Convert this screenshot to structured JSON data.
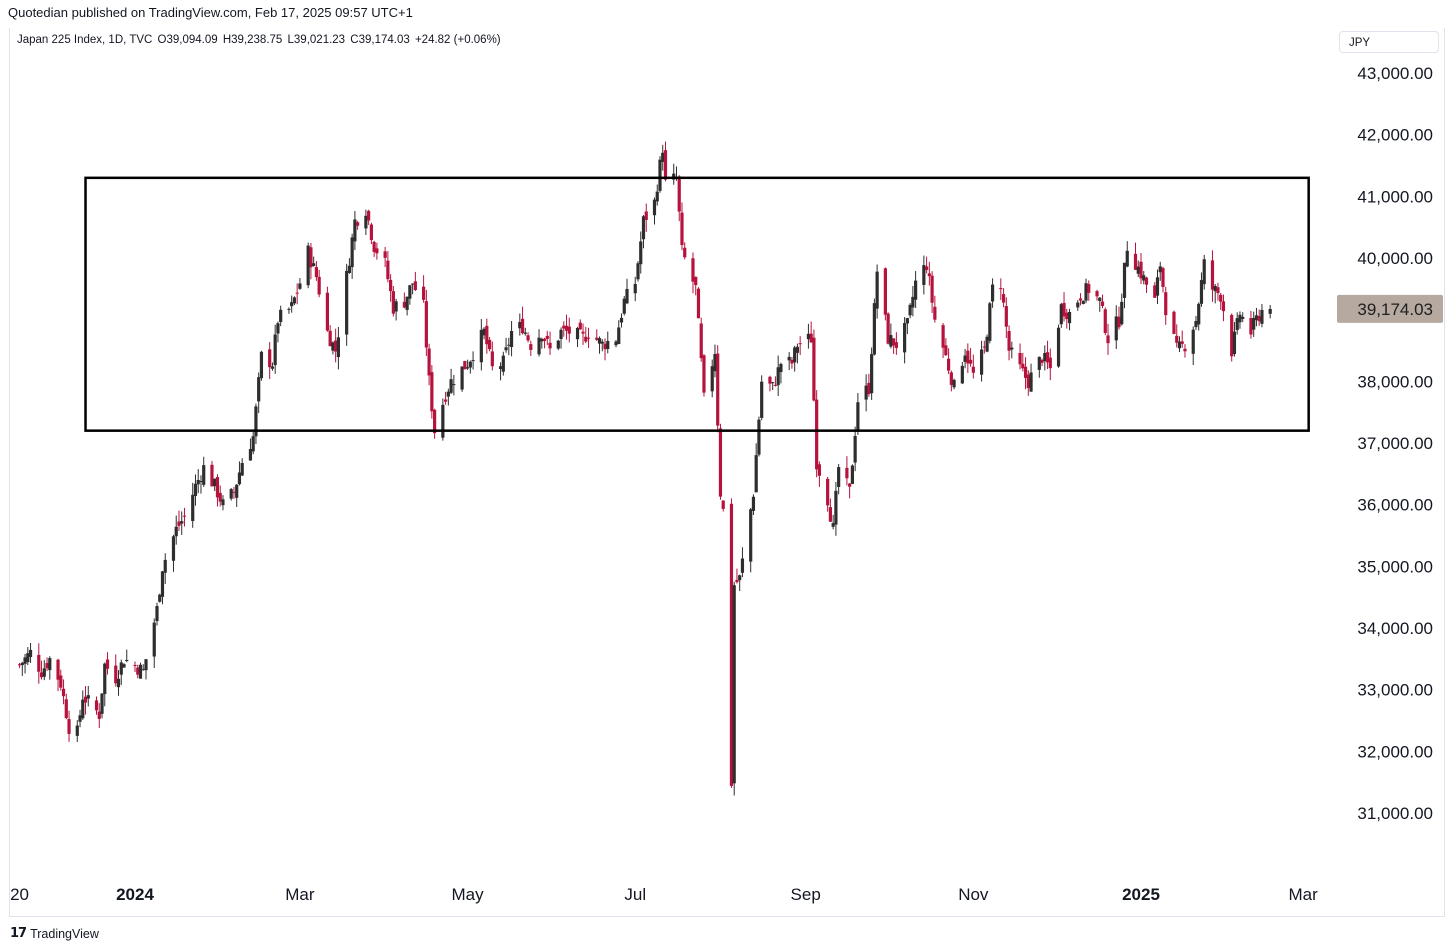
{
  "header": {
    "published": "Quotedian published on TradingView.com, Feb 17, 2025 09:57 UTC+1"
  },
  "legend": {
    "symbol": "Japan 225 Index, 1D, TVC",
    "open": "O39,094.09",
    "high": "H39,238.75",
    "low": "L39,021.23",
    "close": "C39,174.03",
    "change": "+24.82 (+0.06%)"
  },
  "currency_button": "JPY",
  "footer": {
    "brand": "TradingView",
    "logo_icon": "tradingview-logo-icon"
  },
  "colors": {
    "up": "#2e2e2e",
    "down": "#b5123c",
    "box": "#000000",
    "price_label_bg": "#b5a9a0"
  },
  "chart_data": {
    "type": "candlestick",
    "title": "Japan 225 Index, 1D, TVC",
    "ylabel": "",
    "ylim": [
      30300,
      43500
    ],
    "y_ticks": [
      "43,000.00",
      "42,000.00",
      "41,000.00",
      "40,000.00",
      "38,000.00",
      "37,000.00",
      "36,000.00",
      "35,000.00",
      "34,000.00",
      "33,000.00",
      "32,000.00",
      "31,000.00"
    ],
    "x_ticks": [
      {
        "label": "20",
        "date": "2023-11-20",
        "bold": false
      },
      {
        "label": "2024",
        "date": "2024-01-01",
        "bold": true
      },
      {
        "label": "Mar",
        "date": "2024-03-01",
        "bold": false
      },
      {
        "label": "May",
        "date": "2024-05-01",
        "bold": false
      },
      {
        "label": "Jul",
        "date": "2024-07-01",
        "bold": false
      },
      {
        "label": "Sep",
        "date": "2024-09-01",
        "bold": false
      },
      {
        "label": "Nov",
        "date": "2024-11-01",
        "bold": false
      },
      {
        "label": "2025",
        "date": "2025-01-01",
        "bold": true
      },
      {
        "label": "Mar",
        "date": "2025-03-01",
        "bold": false
      }
    ],
    "last_price": {
      "value": 39174.03,
      "label": "39,174.03"
    },
    "range_box": {
      "x_start": "2023-12-14",
      "x_end": "2025-03-03",
      "y_low": 37200,
      "y_high": 41300
    },
    "series_points": [
      [
        "2023-11-20",
        33400
      ],
      [
        "2023-11-24",
        33600
      ],
      [
        "2023-11-28",
        33300
      ],
      [
        "2023-12-01",
        33500
      ],
      [
        "2023-12-05",
        33100
      ],
      [
        "2023-12-08",
        32400
      ],
      [
        "2023-12-11",
        32300
      ],
      [
        "2023-12-13",
        32900
      ],
      [
        "2023-12-15",
        32800
      ],
      [
        "2023-12-19",
        32600
      ],
      [
        "2023-12-21",
        33400
      ],
      [
        "2023-12-25",
        33200
      ],
      [
        "2023-12-28",
        33500
      ],
      [
        "2024-01-04",
        33300
      ],
      [
        "2024-01-09",
        34300
      ],
      [
        "2024-01-11",
        35000
      ],
      [
        "2024-01-16",
        35600
      ],
      [
        "2024-01-19",
        35800
      ],
      [
        "2024-01-23",
        36300
      ],
      [
        "2024-01-26",
        36600
      ],
      [
        "2024-01-30",
        36300
      ],
      [
        "2024-02-02",
        36000
      ],
      [
        "2024-02-06",
        36200
      ],
      [
        "2024-02-09",
        36700
      ],
      [
        "2024-02-13",
        37100
      ],
      [
        "2024-02-16",
        38400
      ],
      [
        "2024-02-20",
        38300
      ],
      [
        "2024-02-22",
        39000
      ],
      [
        "2024-02-27",
        39200
      ],
      [
        "2024-03-01",
        39600
      ],
      [
        "2024-03-04",
        40100
      ],
      [
        "2024-03-07",
        39700
      ],
      [
        "2024-03-11",
        38800
      ],
      [
        "2024-03-14",
        38500
      ],
      [
        "2024-03-18",
        39700
      ],
      [
        "2024-03-21",
        40600
      ],
      [
        "2024-03-25",
        40800
      ],
      [
        "2024-03-28",
        40200
      ],
      [
        "2024-04-01",
        39900
      ],
      [
        "2024-04-04",
        39200
      ],
      [
        "2024-04-08",
        39300
      ],
      [
        "2024-04-11",
        39600
      ],
      [
        "2024-04-15",
        39200
      ],
      [
        "2024-04-17",
        38000
      ],
      [
        "2024-04-19",
        37200
      ],
      [
        "2024-04-23",
        37800
      ],
      [
        "2024-04-25",
        38000
      ],
      [
        "2024-05-01",
        38300
      ],
      [
        "2024-05-07",
        38800
      ],
      [
        "2024-05-10",
        38200
      ],
      [
        "2024-05-14",
        38300
      ],
      [
        "2024-05-17",
        38800
      ],
      [
        "2024-05-21",
        38900
      ],
      [
        "2024-05-24",
        38600
      ],
      [
        "2024-05-28",
        38800
      ],
      [
        "2024-05-31",
        38500
      ],
      [
        "2024-06-04",
        38800
      ],
      [
        "2024-06-07",
        38800
      ],
      [
        "2024-06-12",
        38700
      ],
      [
        "2024-06-14",
        38800
      ],
      [
        "2024-06-19",
        38600
      ],
      [
        "2024-06-24",
        38700
      ],
      [
        "2024-06-27",
        39300
      ],
      [
        "2024-07-01",
        39600
      ],
      [
        "2024-07-04",
        40600
      ],
      [
        "2024-07-08",
        40900
      ],
      [
        "2024-07-11",
        41800
      ],
      [
        "2024-07-12",
        41200
      ],
      [
        "2024-07-16",
        41300
      ],
      [
        "2024-07-18",
        40100
      ],
      [
        "2024-07-23",
        39500
      ],
      [
        "2024-07-26",
        37700
      ],
      [
        "2024-07-30",
        38500
      ],
      [
        "2024-08-01",
        36200
      ],
      [
        "2024-08-02",
        35900
      ],
      [
        "2024-08-05",
        31500
      ],
      [
        "2024-08-06",
        34700
      ],
      [
        "2024-08-08",
        34800
      ],
      [
        "2024-08-13",
        36200
      ],
      [
        "2024-08-16",
        38000
      ],
      [
        "2024-08-20",
        37900
      ],
      [
        "2024-08-23",
        38300
      ],
      [
        "2024-08-27",
        38300
      ],
      [
        "2024-08-29",
        38600
      ],
      [
        "2024-09-03",
        38700
      ],
      [
        "2024-09-05",
        36700
      ],
      [
        "2024-09-09",
        36100
      ],
      [
        "2024-09-11",
        35600
      ],
      [
        "2024-09-13",
        36600
      ],
      [
        "2024-09-17",
        36200
      ],
      [
        "2024-09-20",
        37700
      ],
      [
        "2024-09-24",
        37900
      ],
      [
        "2024-09-27",
        39800
      ],
      [
        "2024-10-01",
        38700
      ],
      [
        "2024-10-04",
        38600
      ],
      [
        "2024-10-08",
        38900
      ],
      [
        "2024-10-11",
        39600
      ],
      [
        "2024-10-15",
        39900
      ],
      [
        "2024-10-18",
        39000
      ],
      [
        "2024-10-22",
        38400
      ],
      [
        "2024-10-25",
        37900
      ],
      [
        "2024-10-29",
        38500
      ],
      [
        "2024-11-01",
        38100
      ],
      [
        "2024-11-05",
        38500
      ],
      [
        "2024-11-08",
        39500
      ],
      [
        "2024-11-11",
        39600
      ],
      [
        "2024-11-14",
        38500
      ],
      [
        "2024-11-18",
        38200
      ],
      [
        "2024-11-21",
        38000
      ],
      [
        "2024-11-26",
        38400
      ],
      [
        "2024-11-29",
        38200
      ],
      [
        "2024-12-03",
        39200
      ],
      [
        "2024-12-06",
        39100
      ],
      [
        "2024-12-10",
        39400
      ],
      [
        "2024-12-13",
        39500
      ],
      [
        "2024-12-17",
        39300
      ],
      [
        "2024-12-20",
        38700
      ],
      [
        "2024-12-24",
        39000
      ],
      [
        "2024-12-27",
        40200
      ],
      [
        "2025-01-06",
        39300
      ],
      [
        "2025-01-08",
        39900
      ],
      [
        "2025-01-10",
        39200
      ],
      [
        "2025-01-14",
        38500
      ],
      [
        "2025-01-17",
        38600
      ],
      [
        "2025-01-21",
        39000
      ],
      [
        "2025-01-24",
        39900
      ],
      [
        "2025-01-27",
        39500
      ],
      [
        "2025-01-30",
        39400
      ],
      [
        "2025-02-03",
        38500
      ],
      [
        "2025-02-06",
        39100
      ],
      [
        "2025-02-10",
        38800
      ],
      [
        "2025-02-12",
        39000
      ],
      [
        "2025-02-14",
        39150
      ],
      [
        "2025-02-17",
        39174
      ]
    ],
    "annotations": [
      "Japan 225 Index, 1D, TVC"
    ],
    "grid": false,
    "legend_position": "top-left"
  }
}
